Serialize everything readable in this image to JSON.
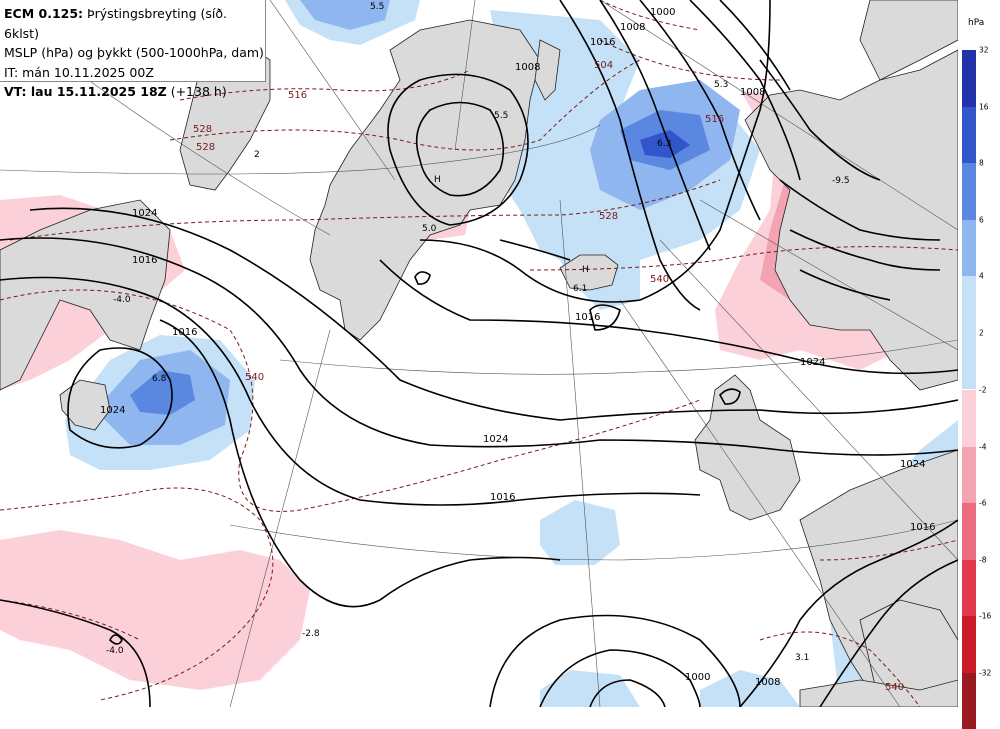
{
  "header": {
    "model": "ECM 0.125:",
    "title": "Þrýstingsbreyting (síð. 6klst)",
    "line2": "MSLP (hPa) og þykkt (500-1000hPa, dam)",
    "line3": "IT: mán 10.11.2025 00Z",
    "vt_bold": "VT: lau 15.11.2025 18Z",
    "vt_rest": " (+138 h)"
  },
  "legend": {
    "unit": "hPa",
    "positive": [
      {
        "label": "32",
        "color": "#2233aa"
      },
      {
        "label": "16",
        "color": "#3355cc"
      },
      {
        "label": "8",
        "color": "#5a88e0"
      },
      {
        "label": "6",
        "color": "#8fb6ee"
      },
      {
        "label": "4",
        "color": "#c4e1f8"
      },
      {
        "label": "2",
        "color": "#c4e1f8"
      }
    ],
    "negative": [
      {
        "label": "-2",
        "color": "#fbd0d8"
      },
      {
        "label": "-4",
        "color": "#f3a3b2"
      },
      {
        "label": "-6",
        "color": "#ec6c7f"
      },
      {
        "label": "-8",
        "color": "#e13a4d"
      },
      {
        "label": "-16",
        "color": "#cc1b28"
      },
      {
        "label": "-32",
        "color": "#9a1a22"
      }
    ]
  },
  "map": {
    "isobar_labels": [
      "1024",
      "1016",
      "1024",
      "1016",
      "1024",
      "1024",
      "1016",
      "1008",
      "1000",
      "1008",
      "1016",
      "1008",
      "1000",
      "1016",
      "1008",
      "1016",
      "1024"
    ],
    "thickness_labels": [
      "516",
      "528",
      "540",
      "504",
      "516",
      "528",
      "540",
      "540",
      "528"
    ],
    "value_labels": [
      "5.5",
      "5.5",
      "2",
      "5.0",
      "-4.0",
      "6.8",
      "-9.5",
      "6.3",
      "5.3",
      "6.1",
      "-2.8",
      "-4.0",
      "3.1"
    ]
  }
}
